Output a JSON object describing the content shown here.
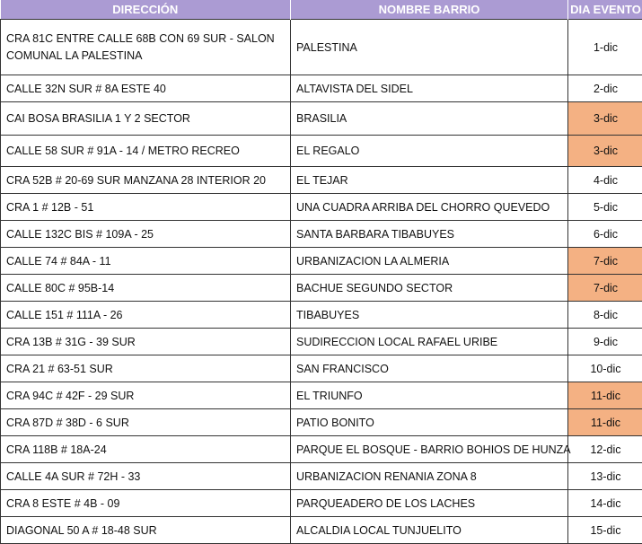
{
  "headers": {
    "direccion": "DIRECCIÓN",
    "barrio": "NOMBRE BARRIO",
    "dia": "DIA EVENTO"
  },
  "colors": {
    "header_bg": "#ab9bd3",
    "highlight": "#f4b183"
  },
  "rows": [
    {
      "direccion": "CRA 81C ENTRE CALLE 68B CON 69 SUR - SALON COMUNAL LA PALESTINA",
      "barrio": "PALESTINA",
      "dia": "1-dic",
      "highlight": false
    },
    {
      "direccion": "CALLE 32N SUR # 8A ESTE 40",
      "barrio": "ALTAVISTA DEL SIDEL",
      "dia": "2-dic",
      "highlight": false
    },
    {
      "direccion": "CAI BOSA BRASILIA 1 Y 2 SECTOR",
      "barrio": "BRASILIA",
      "dia": "3-dic",
      "highlight": true
    },
    {
      "direccion": "CALLE 58 SUR # 91A - 14 / METRO RECREO",
      "barrio": "EL REGALO",
      "dia": "3-dic",
      "highlight": true
    },
    {
      "direccion": "CRA 52B # 20-69 SUR MANZANA 28 INTERIOR 20",
      "barrio": "EL TEJAR",
      "dia": "4-dic",
      "highlight": false
    },
    {
      "direccion": "CRA 1 # 12B - 51",
      "barrio": "UNA CUADRA ARRIBA DEL CHORRO QUEVEDO",
      "dia": "5-dic",
      "highlight": false
    },
    {
      "direccion": "CALLE 132C BIS # 109A - 25",
      "barrio": "SANTA BARBARA TIBABUYES",
      "dia": "6-dic",
      "highlight": false
    },
    {
      "direccion": "CALLE 74 # 84A - 11",
      "barrio": "URBANIZACION LA ALMERIA",
      "dia": "7-dic",
      "highlight": true
    },
    {
      "direccion": "CALLE 80C # 95B-14",
      "barrio": "BACHUE SEGUNDO SECTOR",
      "dia": "7-dic",
      "highlight": true
    },
    {
      "direccion": "CALLE 151 # 111A - 26",
      "barrio": "TIBABUYES",
      "dia": "8-dic",
      "highlight": false
    },
    {
      "direccion": "CRA 13B # 31G - 39 SUR",
      "barrio": "SUDIRECCION LOCAL RAFAEL URIBE",
      "dia": "9-dic",
      "highlight": false
    },
    {
      "direccion": "CRA 21 # 63-51 SUR",
      "barrio": "SAN FRANCISCO",
      "dia": "10-dic",
      "highlight": false
    },
    {
      "direccion": "CRA 94C # 42F - 29 SUR",
      "barrio": "EL TRIUNFO",
      "dia": "11-dic",
      "highlight": true
    },
    {
      "direccion": "CRA 87D # 38D - 6 SUR",
      "barrio": "PATIO BONITO",
      "dia": "11-dic",
      "highlight": true
    },
    {
      "direccion": "CRA 118B # 18A-24",
      "barrio": "PARQUE EL BOSQUE - BARRIO BOHIOS DE HUNZA",
      "dia": "12-dic",
      "highlight": false
    },
    {
      "direccion": "CALLE 4A SUR # 72H - 33",
      "barrio": "URBANIZACION RENANIA ZONA 8",
      "dia": "13-dic",
      "highlight": false
    },
    {
      "direccion": "CRA 8 ESTE # 4B - 09",
      "barrio": "PARQUEADERO DE LOS LACHES",
      "dia": "14-dic",
      "highlight": false
    },
    {
      "direccion": "DIAGONAL 50 A # 18-48 SUR",
      "barrio": "ALCALDIA LOCAL TUNJUELITO",
      "dia": "15-dic",
      "highlight": false
    }
  ]
}
